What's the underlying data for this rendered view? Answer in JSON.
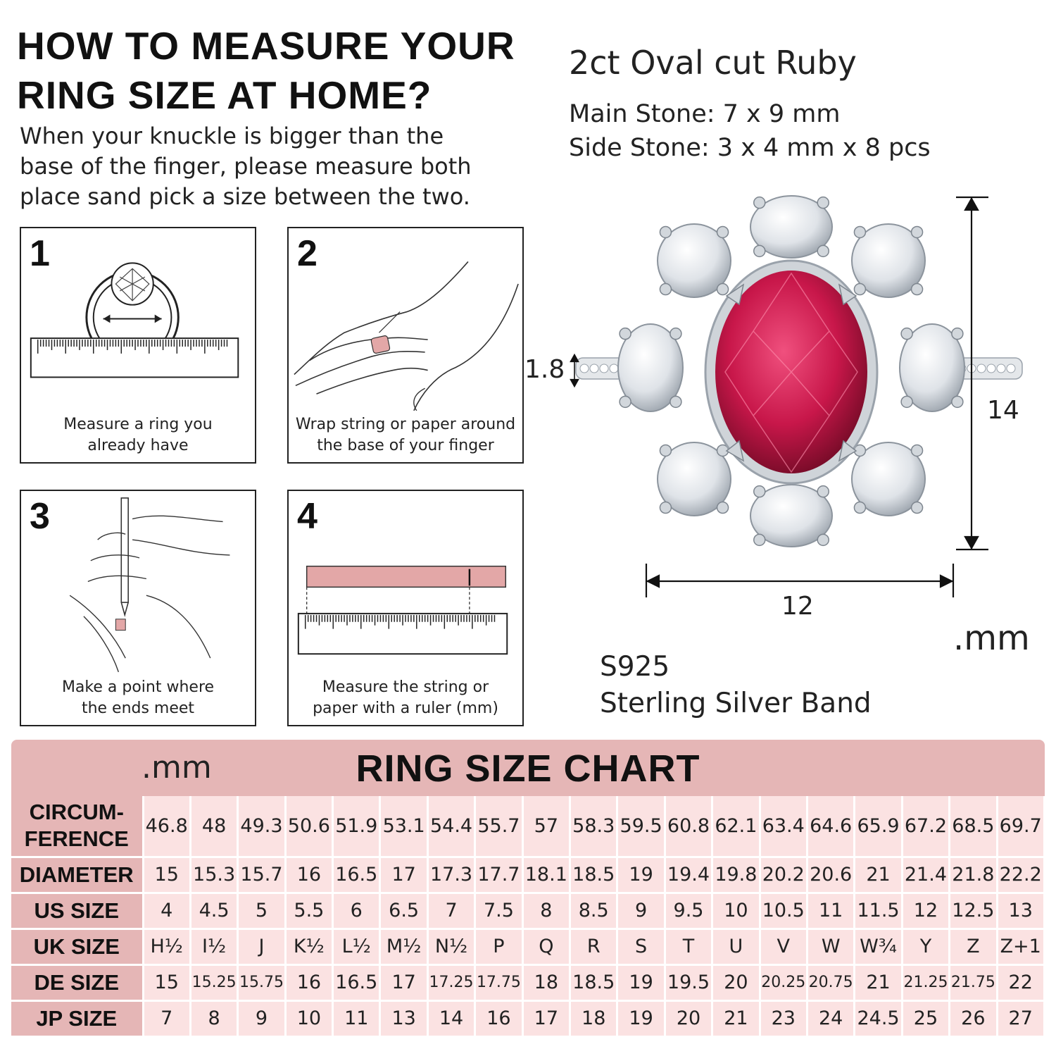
{
  "heading": {
    "line1": "HOW TO MEASURE YOUR",
    "line2": "RING SIZE AT HOME?"
  },
  "intro": {
    "line1": "When your knuckle is bigger than the",
    "line2": "base of the finger, please measure both",
    "line3": "place sand pick a size between the two."
  },
  "steps": [
    {
      "number": "1",
      "caption1": "Measure a ring you",
      "caption2": "already have",
      "icon": "ring-on-ruler-icon"
    },
    {
      "number": "2",
      "caption1": "Wrap string or paper around",
      "caption2": "the base of your finger",
      "icon": "hand-with-string-icon"
    },
    {
      "number": "3",
      "caption1": "Make a point where",
      "caption2": "the ends meet",
      "icon": "hand-marking-pen-icon"
    },
    {
      "number": "4",
      "caption1": "Measure the string or",
      "caption2": "paper with a ruler (mm)",
      "icon": "strip-and-ruler-icon"
    }
  ],
  "product": {
    "title": "2ct Oval cut Ruby",
    "main_stone": "Main Stone: 7 x 9 mm",
    "side_stone": "Side Stone: 3 x 4 mm x 8 pcs",
    "band_width": "1.8",
    "height": "14",
    "width": "12",
    "unit": ".mm",
    "metal_code": "S925",
    "metal_name": "Sterling Silver Band",
    "colors": {
      "ruby": "#c8174a",
      "silver": "#d9dde2"
    }
  },
  "size_chart": {
    "unit": ".mm",
    "title": "RING SIZE CHART",
    "colors": {
      "header": "#e5b6b6",
      "cell": "#fbe2e2"
    },
    "rows": [
      {
        "label1": "CIRCUM-",
        "label2": "FERENCE",
        "values": [
          "46.8",
          "48",
          "49.3",
          "50.6",
          "51.9",
          "53.1",
          "54.4",
          "55.7",
          "57",
          "58.3",
          "59.5",
          "60.8",
          "62.1",
          "63.4",
          "64.6",
          "65.9",
          "67.2",
          "68.5",
          "69.7"
        ]
      },
      {
        "label1": "DIAMETER",
        "label2": "",
        "values": [
          "15",
          "15.3",
          "15.7",
          "16",
          "16.5",
          "17",
          "17.3",
          "17.7",
          "18.1",
          "18.5",
          "19",
          "19.4",
          "19.8",
          "20.2",
          "20.6",
          "21",
          "21.4",
          "21.8",
          "22.2"
        ]
      },
      {
        "label1": "US SIZE",
        "label2": "",
        "values": [
          "4",
          "4.5",
          "5",
          "5.5",
          "6",
          "6.5",
          "7",
          "7.5",
          "8",
          "8.5",
          "9",
          "9.5",
          "10",
          "10.5",
          "11",
          "11.5",
          "12",
          "12.5",
          "13"
        ]
      },
      {
        "label1": "UK SIZE",
        "label2": "",
        "values": [
          "H½",
          "I½",
          "J",
          "K½",
          "L½",
          "M½",
          "N½",
          "P",
          "Q",
          "R",
          "S",
          "T",
          "U",
          "V",
          "W",
          "W¾",
          "Y",
          "Z",
          "Z+1"
        ]
      },
      {
        "label1": "DE SIZE",
        "label2": "",
        "values": [
          "15",
          "15.25",
          "15.75",
          "16",
          "16.5",
          "17",
          "17.25",
          "17.75",
          "18",
          "18.5",
          "19",
          "19.5",
          "20",
          "20.25",
          "20.75",
          "21",
          "21.25",
          "21.75",
          "22"
        ]
      },
      {
        "label1": "JP SIZE",
        "label2": "",
        "values": [
          "7",
          "8",
          "9",
          "10",
          "11",
          "13",
          "14",
          "16",
          "17",
          "18",
          "19",
          "20",
          "21",
          "23",
          "24",
          "24.5",
          "25",
          "26",
          "27"
        ]
      }
    ]
  }
}
